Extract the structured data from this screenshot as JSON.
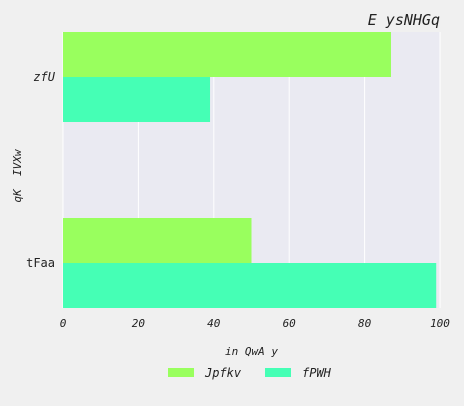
{
  "chart_data": {
    "type": "bar",
    "orientation": "horizontal",
    "title": "E ysNHGq",
    "xlabel": "in QwA y",
    "ylabel": "qK  IVXw",
    "categories": [
      "zfU",
      "tFaa"
    ],
    "series": [
      {
        "name": "Jpfkv",
        "values": [
          87,
          50
        ]
      },
      {
        "name": "fPWH",
        "values": [
          39,
          99
        ]
      }
    ],
    "xlim": [
      0,
      100
    ],
    "xticks": [
      0,
      20,
      40,
      60,
      80,
      100
    ],
    "grid": true,
    "legend_position": "bottom",
    "colors": {
      "background": "#f0f0f0",
      "plot_background": "#eaeaf2",
      "grid": "#ffffff",
      "series": [
        "#99ff5e",
        "#45ffb5"
      ]
    }
  }
}
